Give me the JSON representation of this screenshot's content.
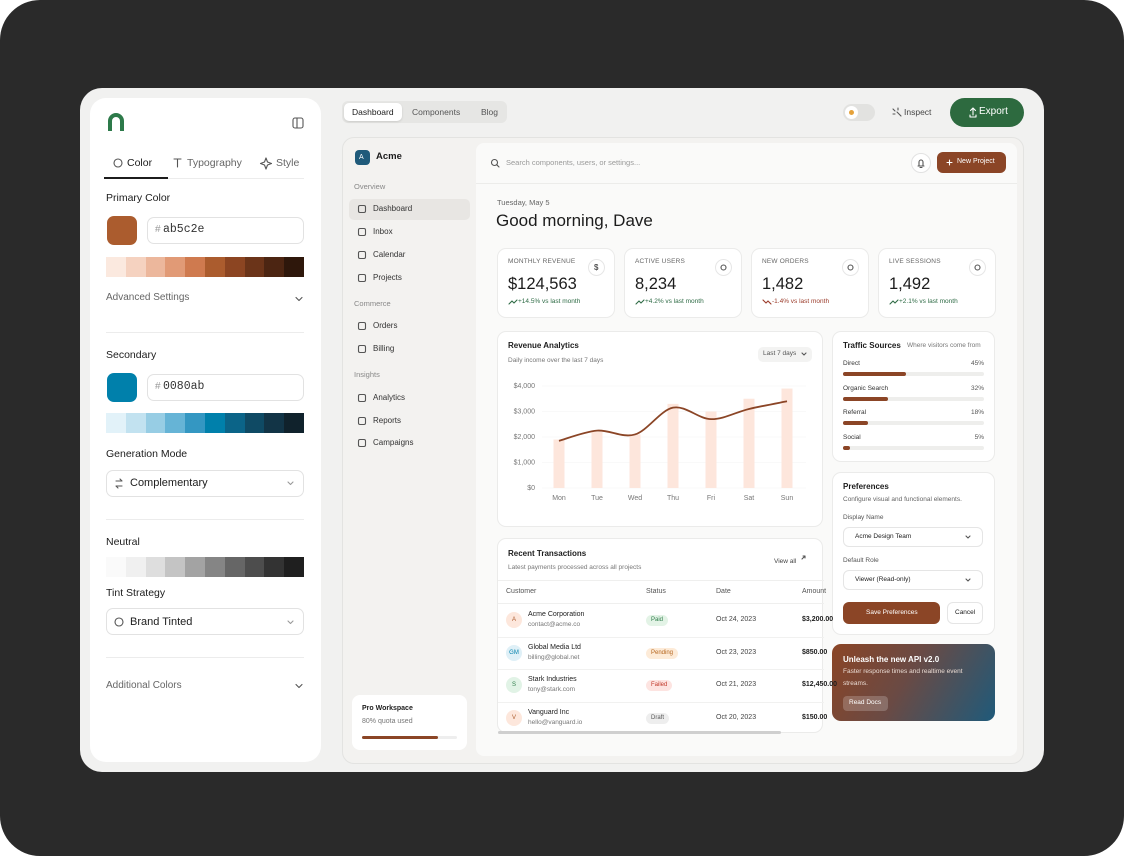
{
  "editor": {
    "tabs": [
      "Color",
      "Typography",
      "Style"
    ],
    "primary": {
      "label": "Primary Color",
      "prefix": "#",
      "hex": "ab5c2e",
      "color": "#ab5c2e",
      "shades": [
        "#fbe9df",
        "#f5d2c0",
        "#ecb79c",
        "#e19a76",
        "#cf7a4f",
        "#ab5c2e",
        "#8c4522",
        "#6b3419",
        "#4c2512",
        "#2e170b"
      ]
    },
    "advanced": "Advanced Settings",
    "secondary": {
      "label": "Secondary",
      "prefix": "#",
      "hex": "0080ab",
      "color": "#0080ab",
      "shades": [
        "#e2f2f9",
        "#c2e2f0",
        "#97cde4",
        "#66b4d6",
        "#3497c2",
        "#0080ab",
        "#0b6488",
        "#0f4a64",
        "#123446",
        "#10222c"
      ]
    },
    "generation": {
      "label": "Generation Mode",
      "value": "Complementary"
    },
    "neutral": {
      "label": "Neutral",
      "shades": [
        "#fafafa",
        "#f0f0f0",
        "#dedede",
        "#c4c4c4",
        "#a3a3a3",
        "#858585",
        "#666666",
        "#4d4d4d",
        "#333333",
        "#1f1f1f"
      ]
    },
    "tint": {
      "label": "Tint Strategy",
      "value": "Brand Tinted"
    },
    "additional": "Additional Colors"
  },
  "topbar": {
    "tabs": [
      "Dashboard",
      "Components",
      "Blog"
    ],
    "inspect": "Inspect",
    "export": "Export"
  },
  "app": {
    "brand": {
      "initial": "A",
      "name": "Acme"
    },
    "nav": [
      {
        "title": "Overview",
        "items": [
          "Dashboard",
          "Inbox",
          "Calendar",
          "Projects"
        ]
      },
      {
        "title": "Commerce",
        "items": [
          "Orders",
          "Billing"
        ]
      },
      {
        "title": "Insights",
        "items": [
          "Analytics",
          "Reports",
          "Campaigns"
        ]
      }
    ],
    "workspace": {
      "title": "Pro Workspace",
      "note": "80% quota used"
    },
    "search": "Search components, users, or settings...",
    "new_project": "New Project",
    "date": "Tuesday, May 5",
    "greeting": "Good morning, Dave",
    "stats": [
      {
        "label": "MONTHLY REVENUE",
        "value": "$124,563",
        "change": "+14.5% vs last month",
        "icon": "$",
        "color": "#2e6b45"
      },
      {
        "label": "ACTIVE USERS",
        "value": "8,234",
        "change": "+4.2% vs last month",
        "color": "#2e6b45"
      },
      {
        "label": "NEW ORDERS",
        "value": "1,482",
        "change": "-1.4% vs last month",
        "color": "#9b3b2a"
      },
      {
        "label": "LIVE SESSIONS",
        "value": "1,492",
        "change": "+2.1% vs last month",
        "color": "#2e6b45"
      }
    ],
    "traffic": {
      "title": "Traffic Sources",
      "subtitle": "Where visitors come from",
      "color": "#8b4526",
      "sources": [
        {
          "name": "Direct",
          "value": 45,
          "label": "45%"
        },
        {
          "name": "Organic Search",
          "value": 32,
          "label": "32%"
        },
        {
          "name": "Referral",
          "value": 18,
          "label": "18%"
        },
        {
          "name": "Social",
          "value": 5,
          "label": "5%"
        }
      ]
    },
    "preferences": {
      "title": "Preferences",
      "subtitle": "Configure visual and functional elements.",
      "display_label": "Display Name",
      "display_value": "Acme Design Team",
      "role_label": "Default Role",
      "role_value": "Viewer (Read-only)",
      "save": "Save Preferences",
      "cancel": "Cancel"
    },
    "promo": {
      "title": "Unleash the new API v2.0",
      "text": "Faster response times and realtime event streams.",
      "button": "Read Docs"
    },
    "transactions": {
      "title": "Recent Transactions",
      "subtitle": "Latest payments processed across all projects",
      "view_all": "View all",
      "columns": [
        "Customer",
        "Status",
        "Date",
        "Amount"
      ],
      "rows": [
        {
          "initial": "A",
          "name": "Acme Corporation",
          "email": "contact@acme.co",
          "status": "Paid",
          "date": "Oct 24, 2023",
          "amount": "$3,200.00",
          "avatar_color": "#fde7dc",
          "avatar_text": "#ab5c2e",
          "status_bg": "#e3f3e6",
          "status_text": "#2e7d4a"
        },
        {
          "initial": "GM",
          "name": "Global Media Ltd",
          "email": "billing@global.net",
          "status": "Pending",
          "date": "Oct 23, 2023",
          "amount": "$850.00",
          "avatar_color": "#dff0f7",
          "avatar_text": "#0080ab",
          "status_bg": "#fdebd8",
          "status_text": "#b5651d"
        },
        {
          "initial": "S",
          "name": "Stark Industries",
          "email": "tony@stark.com",
          "status": "Failed",
          "date": "Oct 21, 2023",
          "amount": "$12,450.00",
          "avatar_color": "#e1f3e6",
          "avatar_text": "#2e7d4a",
          "status_bg": "#fde4e1",
          "status_text": "#c0392b"
        },
        {
          "initial": "V",
          "name": "Vanguard Inc",
          "email": "hello@vanguard.io",
          "status": "Draft",
          "date": "Oct 20, 2023",
          "amount": "$150.00",
          "avatar_color": "#fde7dc",
          "avatar_text": "#ab5c2e",
          "status_bg": "#eeeeee",
          "status_text": "#555555"
        }
      ]
    }
  },
  "chart_data": {
    "type": "bar",
    "title": "Revenue Analytics",
    "subtitle": "Daily income over the last 7 days",
    "range_label": "Last 7 days",
    "categories": [
      "Mon",
      "Tue",
      "Wed",
      "Thu",
      "Fri",
      "Sat",
      "Sun"
    ],
    "series": [
      {
        "color": "#fde6dc",
        "values": [
          1900,
          2200,
          2100,
          3300,
          3000,
          3500,
          3900
        ]
      },
      {
        "type": "line",
        "color": "#8b4526",
        "values": [
          1850,
          2250,
          2100,
          3150,
          2700,
          3100,
          3400
        ]
      }
    ],
    "ylim": [
      0,
      4000
    ],
    "yticks": [
      {
        "value": 0,
        "label": "$0"
      },
      {
        "value": 1000,
        "label": "$1,000"
      },
      {
        "value": 2000,
        "label": "$2,000"
      },
      {
        "value": 3000,
        "label": "$3,000"
      },
      {
        "value": 4000,
        "label": "$4,000"
      }
    ]
  }
}
